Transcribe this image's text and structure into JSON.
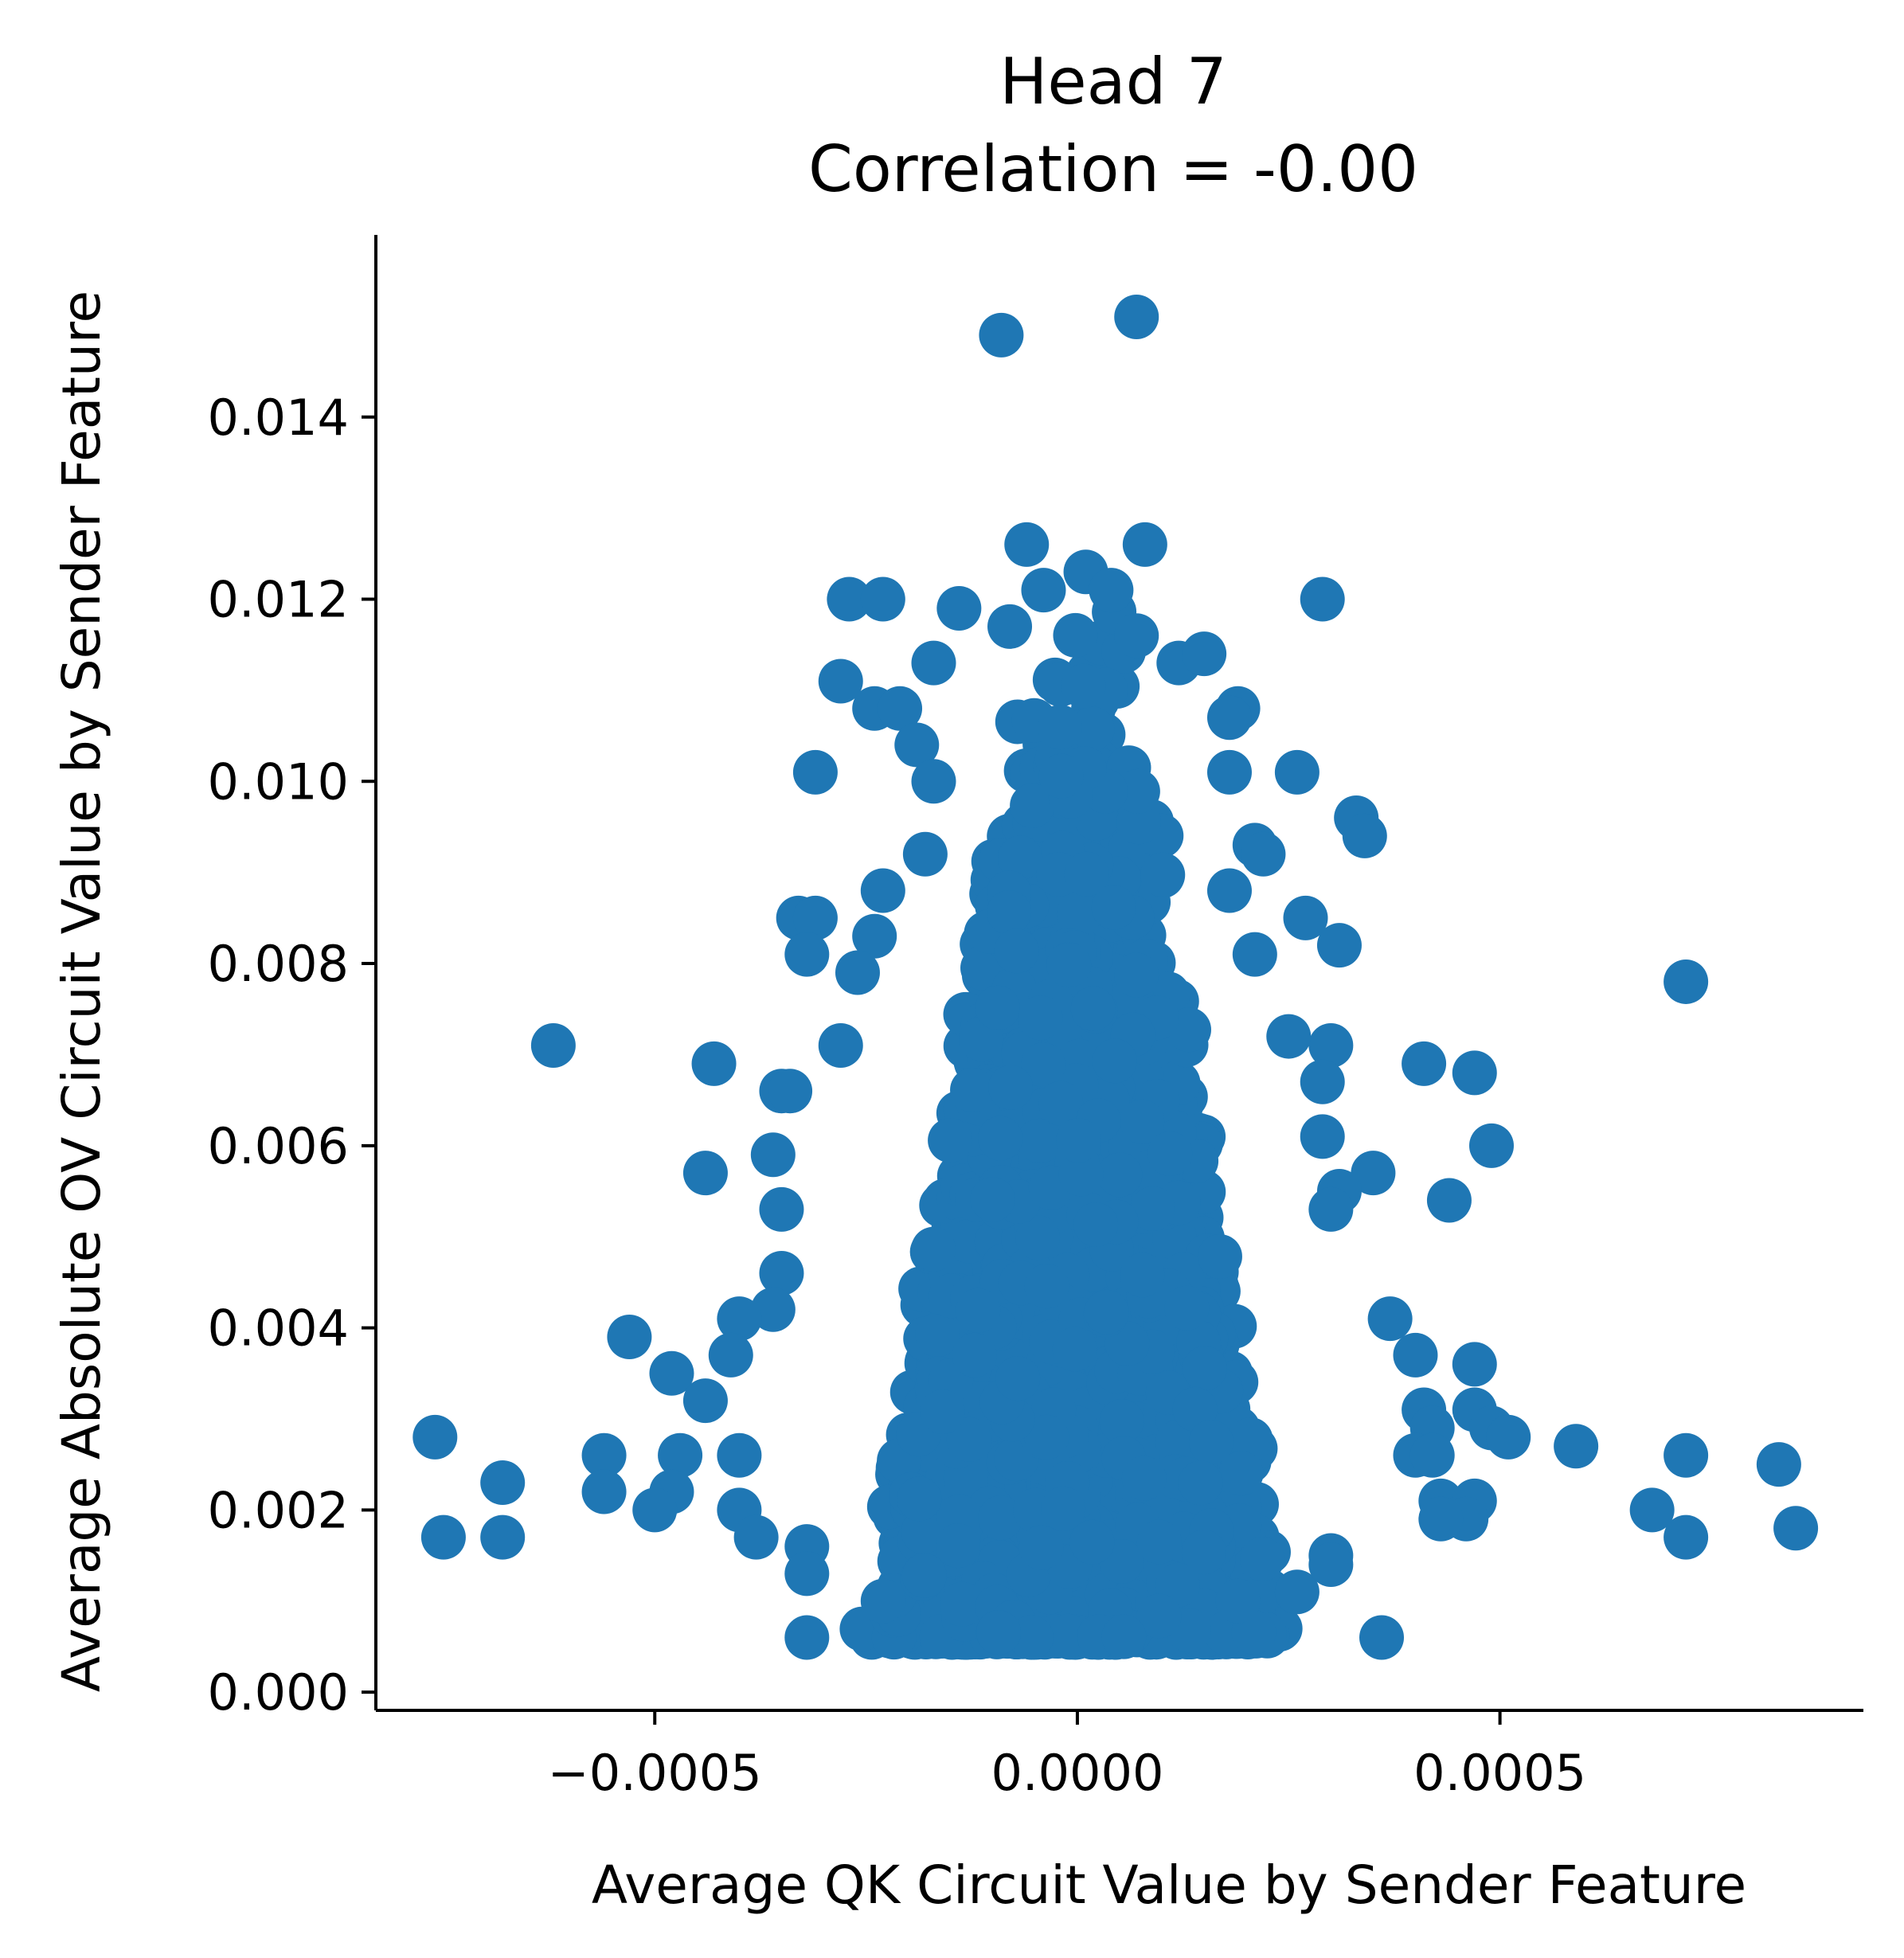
{
  "chart_data": {
    "type": "scatter",
    "title": "Head 7",
    "subtitle": "Correlation = -0.00",
    "xlabel": "Average QK Circuit Value by Sender Feature",
    "ylabel": "Average Absolute OV Circuit Value by Sender Feature",
    "xlim": [
      -0.00083,
      0.00093
    ],
    "ylim": [
      -0.0002,
      0.016
    ],
    "x_ticks": [
      -0.0005,
      0.0,
      0.0005
    ],
    "x_tick_labels": [
      "−0.0005",
      "0.0000",
      "0.0005"
    ],
    "y_ticks": [
      0.0,
      0.002,
      0.004,
      0.006,
      0.008,
      0.01,
      0.012,
      0.014
    ],
    "y_tick_labels": [
      "0.000",
      "0.002",
      "0.004",
      "0.006",
      "0.008",
      "0.010",
      "0.012",
      "0.014"
    ],
    "grid": false,
    "marker_color": "#1f77b4",
    "dense_core": {
      "description_note": "",
      "x_center": 0.0,
      "x_half_width_bottom": 0.00026,
      "x_half_width_top": 6e-05,
      "y_bottom": 0.0006,
      "y_top": 0.012
    },
    "points": [
      [
        7e-05,
        0.0151
      ],
      [
        -9e-05,
        0.0149
      ],
      [
        -6e-05,
        0.0126
      ],
      [
        8e-05,
        0.0126
      ],
      [
        1e-05,
        0.0123
      ],
      [
        -4e-05,
        0.0121
      ],
      [
        4e-05,
        0.0121
      ],
      [
        -0.00027,
        0.012
      ],
      [
        -0.00023,
        0.012
      ],
      [
        0.00029,
        0.012
      ],
      [
        -0.00014,
        0.0119
      ],
      [
        -8e-05,
        0.0117
      ],
      [
        7e-05,
        0.0116
      ],
      [
        -0.00017,
        0.0113
      ],
      [
        0.00012,
        0.0113
      ],
      [
        0.00015,
        0.0114
      ],
      [
        -0.00028,
        0.0111
      ],
      [
        -0.00024,
        0.0108
      ],
      [
        -0.00021,
        0.0108
      ],
      [
        0.00019,
        0.0108
      ],
      [
        0.00018,
        0.0107
      ],
      [
        -0.00031,
        0.0101
      ],
      [
        -0.00019,
        0.0104
      ],
      [
        -0.00017,
        0.01
      ],
      [
        0.00018,
        0.0101
      ],
      [
        0.00026,
        0.0101
      ],
      [
        0.00033,
        0.0096
      ],
      [
        0.00034,
        0.0094
      ],
      [
        0.00021,
        0.0093
      ],
      [
        0.00022,
        0.0092
      ],
      [
        -0.00018,
        0.0092
      ],
      [
        -0.00033,
        0.0085
      ],
      [
        -0.00031,
        0.0085
      ],
      [
        -0.00032,
        0.0081
      ],
      [
        -0.00023,
        0.0088
      ],
      [
        0.00018,
        0.0088
      ],
      [
        0.00027,
        0.0085
      ],
      [
        -0.00024,
        0.0083
      ],
      [
        0.00031,
        0.0082
      ],
      [
        0.00021,
        0.0081
      ],
      [
        0.00072,
        0.0078
      ],
      [
        -0.00026,
        0.0079
      ],
      [
        -0.00062,
        0.0071
      ],
      [
        -0.00043,
        0.0069
      ],
      [
        -0.00028,
        0.0071
      ],
      [
        0.0003,
        0.0071
      ],
      [
        0.00025,
        0.0072
      ],
      [
        0.00041,
        0.0069
      ],
      [
        0.00047,
        0.0068
      ],
      [
        -0.00035,
        0.0066
      ],
      [
        -0.00034,
        0.0066
      ],
      [
        0.00029,
        0.0067
      ],
      [
        0.00049,
        0.006
      ],
      [
        -0.00036,
        0.0059
      ],
      [
        0.00029,
        0.0061
      ],
      [
        -0.00044,
        0.0057
      ],
      [
        0.00035,
        0.0057
      ],
      [
        0.00044,
        0.0054
      ],
      [
        -0.00035,
        0.0053
      ],
      [
        0.00031,
        0.0055
      ],
      [
        0.0003,
        0.0053
      ],
      [
        -0.00035,
        0.0046
      ],
      [
        -0.00036,
        0.0042
      ],
      [
        -0.0004,
        0.0041
      ],
      [
        -0.00053,
        0.0039
      ],
      [
        0.00037,
        0.0041
      ],
      [
        -0.00048,
        0.0035
      ],
      [
        -0.00041,
        0.0037
      ],
      [
        0.0004,
        0.0037
      ],
      [
        0.00047,
        0.0036
      ],
      [
        -0.00044,
        0.0032
      ],
      [
        0.00041,
        0.0031
      ],
      [
        0.00047,
        0.0031
      ],
      [
        0.00042,
        0.0029
      ],
      [
        0.00049,
        0.0029
      ],
      [
        0.00051,
        0.0028
      ],
      [
        -0.00076,
        0.0028
      ],
      [
        0.00059,
        0.0027
      ],
      [
        -0.00056,
        0.0026
      ],
      [
        -0.00047,
        0.0026
      ],
      [
        -0.0004,
        0.0026
      ],
      [
        0.0004,
        0.0026
      ],
      [
        0.00042,
        0.0026
      ],
      [
        0.00072,
        0.0026
      ],
      [
        0.00083,
        0.0025
      ],
      [
        -0.00068,
        0.0023
      ],
      [
        -0.00056,
        0.0022
      ],
      [
        -0.00048,
        0.0022
      ],
      [
        -0.0005,
        0.002
      ],
      [
        -0.0004,
        0.002
      ],
      [
        0.00043,
        0.0021
      ],
      [
        0.00047,
        0.0021
      ],
      [
        0.00068,
        0.002
      ],
      [
        0.00046,
        0.0019
      ],
      [
        0.00043,
        0.0019
      ],
      [
        -0.00038,
        0.0017
      ],
      [
        -0.00032,
        0.0016
      ],
      [
        0.00072,
        0.0017
      ],
      [
        0.00085,
        0.0018
      ],
      [
        -0.00075,
        0.0017
      ],
      [
        -0.00068,
        0.0017
      ],
      [
        -0.00032,
        0.0013
      ],
      [
        -0.00032,
        0.0006
      ],
      [
        0.00036,
        0.0006
      ],
      [
        0.0003,
        0.0015
      ],
      [
        0.00026,
        0.0011
      ],
      [
        0.0003,
        0.0014
      ],
      [
        -0.00023,
        0.001
      ],
      [
        0.00019,
        0.001
      ]
    ]
  }
}
